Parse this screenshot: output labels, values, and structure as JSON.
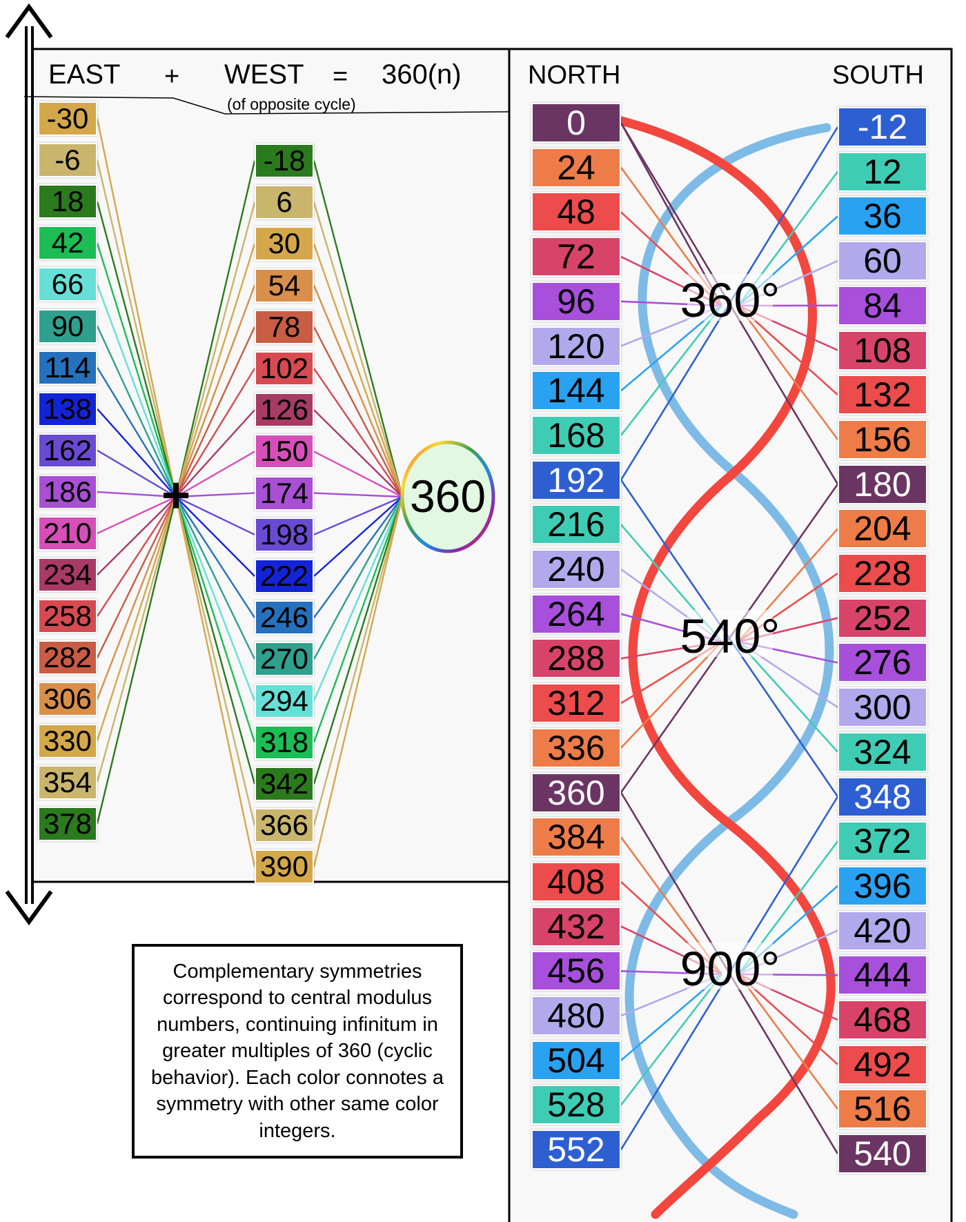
{
  "header": {
    "east": "EAST",
    "plus": "+",
    "west": "WEST",
    "equals": "=",
    "result": "360(n)",
    "note": "(of opposite cycle)",
    "north": "NORTH",
    "south": "SOUTH"
  },
  "left": {
    "east": [
      {
        "n": "-30",
        "c": "#d4a84a"
      },
      {
        "n": "-6",
        "c": "#c9b56c"
      },
      {
        "n": "18",
        "c": "#2c7a1e"
      },
      {
        "n": "42",
        "c": "#1cbd55"
      },
      {
        "n": "66",
        "c": "#66e0d6"
      },
      {
        "n": "90",
        "c": "#2fa08e"
      },
      {
        "n": "114",
        "c": "#2571bd"
      },
      {
        "n": "138",
        "c": "#1324d6"
      },
      {
        "n": "162",
        "c": "#6a4ad2"
      },
      {
        "n": "186",
        "c": "#a84fd4"
      },
      {
        "n": "210",
        "c": "#d64fb8"
      },
      {
        "n": "234",
        "c": "#a83a66"
      },
      {
        "n": "258",
        "c": "#d64a52"
      },
      {
        "n": "282",
        "c": "#c95c44"
      },
      {
        "n": "306",
        "c": "#d88f4a"
      },
      {
        "n": "330",
        "c": "#d4a84a"
      },
      {
        "n": "354",
        "c": "#c9b56c"
      },
      {
        "n": "378",
        "c": "#2c7a1e"
      }
    ],
    "west": [
      {
        "n": "-18",
        "c": "#2c7a1e"
      },
      {
        "n": "6",
        "c": "#c9b56c"
      },
      {
        "n": "30",
        "c": "#d4a84a"
      },
      {
        "n": "54",
        "c": "#d88f4a"
      },
      {
        "n": "78",
        "c": "#c95c44"
      },
      {
        "n": "102",
        "c": "#d64a52"
      },
      {
        "n": "126",
        "c": "#a83a66"
      },
      {
        "n": "150",
        "c": "#d64fb8"
      },
      {
        "n": "174",
        "c": "#a84fd4"
      },
      {
        "n": "198",
        "c": "#6a4ad2"
      },
      {
        "n": "222",
        "c": "#1324d6"
      },
      {
        "n": "246",
        "c": "#2571bd"
      },
      {
        "n": "270",
        "c": "#2fa08e"
      },
      {
        "n": "294",
        "c": "#66e0d6"
      },
      {
        "n": "318",
        "c": "#1cbd55"
      },
      {
        "n": "342",
        "c": "#2c7a1e"
      },
      {
        "n": "366",
        "c": "#c9b56c"
      },
      {
        "n": "390",
        "c": "#d4a84a"
      }
    ],
    "center_symbol": "+",
    "modulus": "360"
  },
  "right": {
    "north": [
      {
        "n": "0",
        "c": "#6b3563"
      },
      {
        "n": "24",
        "c": "#ee7c48"
      },
      {
        "n": "48",
        "c": "#ec4c4c"
      },
      {
        "n": "72",
        "c": "#d8436a"
      },
      {
        "n": "96",
        "c": "#a84fdc"
      },
      {
        "n": "120",
        "c": "#b2a8ec"
      },
      {
        "n": "144",
        "c": "#2aa2f2"
      },
      {
        "n": "168",
        "c": "#3ecdb4"
      },
      {
        "n": "192",
        "c": "#2d5fd2"
      },
      {
        "n": "216",
        "c": "#3ecdb4"
      },
      {
        "n": "240",
        "c": "#b2a8ec"
      },
      {
        "n": "264",
        "c": "#a84fdc"
      },
      {
        "n": "288",
        "c": "#d8436a"
      },
      {
        "n": "312",
        "c": "#ec4c4c"
      },
      {
        "n": "336",
        "c": "#ee7c48"
      },
      {
        "n": "360",
        "c": "#6b3563"
      },
      {
        "n": "384",
        "c": "#ee7c48"
      },
      {
        "n": "408",
        "c": "#ec4c4c"
      },
      {
        "n": "432",
        "c": "#d8436a"
      },
      {
        "n": "456",
        "c": "#a84fdc"
      },
      {
        "n": "480",
        "c": "#b2a8ec"
      },
      {
        "n": "504",
        "c": "#2aa2f2"
      },
      {
        "n": "528",
        "c": "#3ecdb4"
      },
      {
        "n": "552",
        "c": "#2d5fd2"
      }
    ],
    "south": [
      {
        "n": "-12",
        "c": "#2d5fd2"
      },
      {
        "n": "12",
        "c": "#3ecdb4"
      },
      {
        "n": "36",
        "c": "#2aa2f2"
      },
      {
        "n": "60",
        "c": "#b2a8ec"
      },
      {
        "n": "84",
        "c": "#a84fdc"
      },
      {
        "n": "108",
        "c": "#d8436a"
      },
      {
        "n": "132",
        "c": "#ec4c4c"
      },
      {
        "n": "156",
        "c": "#ee7c48"
      },
      {
        "n": "180",
        "c": "#6b3563"
      },
      {
        "n": "204",
        "c": "#ee7c48"
      },
      {
        "n": "228",
        "c": "#ec4c4c"
      },
      {
        "n": "252",
        "c": "#d8436a"
      },
      {
        "n": "276",
        "c": "#a84fdc"
      },
      {
        "n": "300",
        "c": "#b2a8ec"
      },
      {
        "n": "324",
        "c": "#3ecdb4"
      },
      {
        "n": "348",
        "c": "#2d5fd2"
      },
      {
        "n": "372",
        "c": "#3ecdb4"
      },
      {
        "n": "396",
        "c": "#2aa2f2"
      },
      {
        "n": "420",
        "c": "#b2a8ec"
      },
      {
        "n": "444",
        "c": "#a84fdc"
      },
      {
        "n": "468",
        "c": "#d8436a"
      },
      {
        "n": "492",
        "c": "#ec4c4c"
      },
      {
        "n": "516",
        "c": "#ee7c48"
      },
      {
        "n": "540",
        "c": "#6b3563"
      }
    ],
    "hubs": [
      "360°",
      "540°",
      "900°"
    ],
    "helix_colors": {
      "red": "#f2463e",
      "blue": "#7dbbe6"
    }
  },
  "caption": "Complementary symmetries correspond to central modulus numbers, continuing infinitum in greater multiples of 360 (cyclic behavior).  Each color connotes a symmetry with other same color integers."
}
